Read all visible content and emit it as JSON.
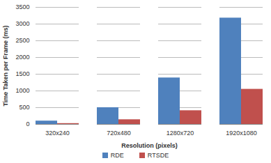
{
  "chart_data": {
    "type": "bar",
    "categories": [
      "320x240",
      "720x480",
      "1280x720",
      "1920x1080"
    ],
    "series": [
      {
        "name": "RDE",
        "color": "#4f81bd",
        "values": [
          100,
          500,
          1390,
          3180
        ]
      },
      {
        "name": "RTSDE",
        "color": "#c0504d",
        "values": [
          25,
          140,
          410,
          1050
        ]
      }
    ],
    "x_label": "Resolution (pixels)",
    "y_label": "Time Taken per Frame (ms)",
    "ylim": [
      0,
      3500
    ],
    "yticks": [
      0,
      500,
      1000,
      1500,
      2000,
      2500,
      3000,
      3500
    ],
    "grid": true,
    "legend": "bottom"
  }
}
